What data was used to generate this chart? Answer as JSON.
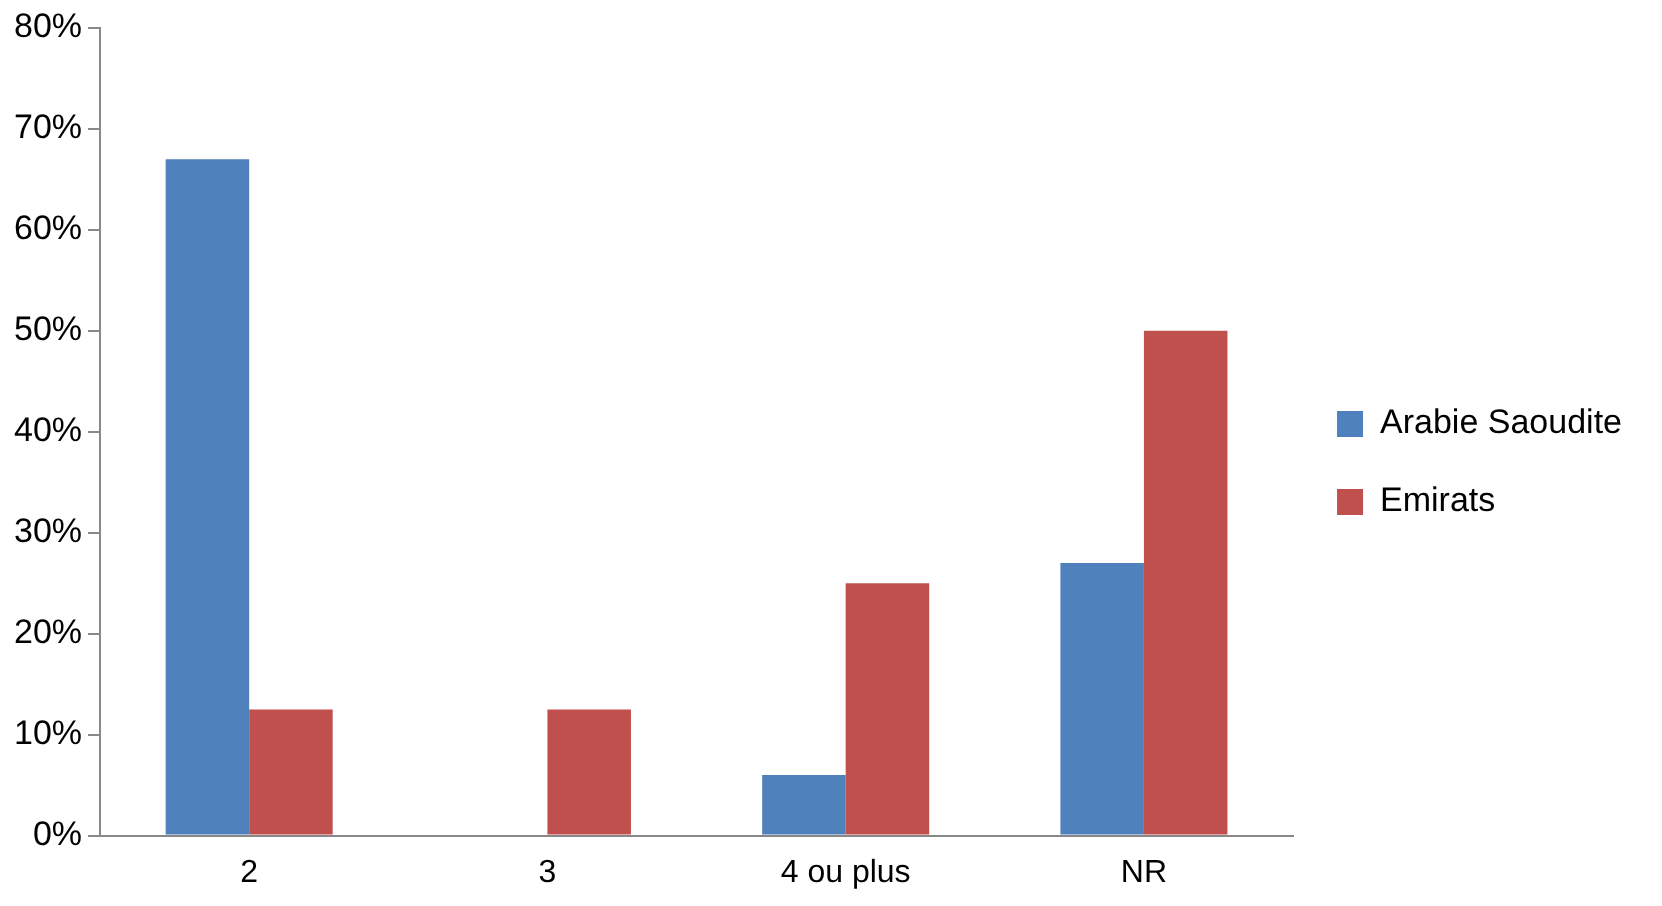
{
  "chart_data": {
    "type": "bar",
    "categories": [
      "2",
      "3",
      "4 ou plus",
      "NR"
    ],
    "series": [
      {
        "name": "Arabie Saoudite",
        "color": "#4f81bd",
        "values": [
          67,
          0,
          6,
          27
        ]
      },
      {
        "name": "Emirats",
        "color": "#c0504d",
        "values": [
          12.5,
          12.5,
          25,
          50
        ]
      }
    ],
    "ylim": [
      0,
      80
    ],
    "yticks": [
      {
        "value": 0,
        "label": "0%"
      },
      {
        "value": 10,
        "label": "10%"
      },
      {
        "value": 20,
        "label": "20%"
      },
      {
        "value": 30,
        "label": "30%"
      },
      {
        "value": 40,
        "label": "40%"
      },
      {
        "value": 50,
        "label": "50%"
      },
      {
        "value": 60,
        "label": "60%"
      },
      {
        "value": 70,
        "label": "70%"
      },
      {
        "value": 80,
        "label": "80%"
      }
    ],
    "grid": false,
    "legend": "right"
  }
}
